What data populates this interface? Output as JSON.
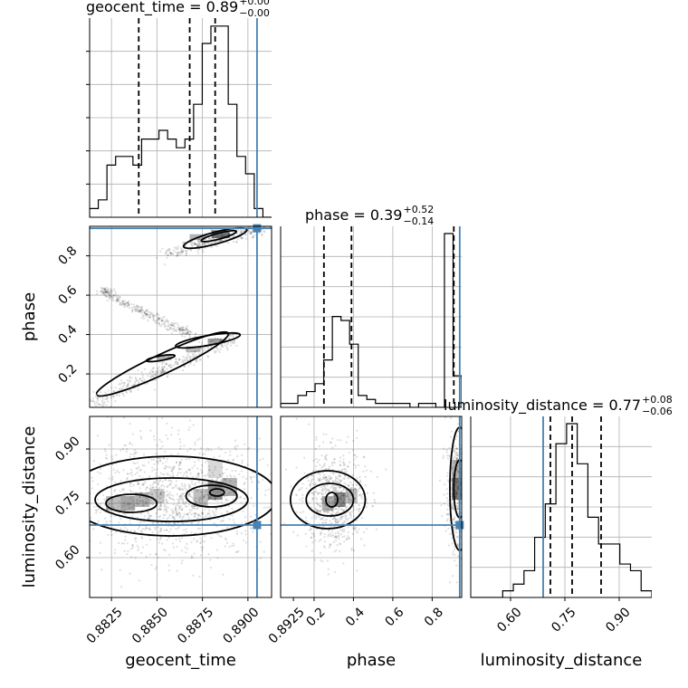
{
  "chart_data": {
    "type": "corner",
    "truth_color": "#4682b4",
    "parameters": [
      {
        "key": "geocent_time",
        "label": "geocent_time",
        "range": [
          0.8813,
          0.8913
        ],
        "ticks": [
          "0.8825",
          "0.8850",
          "0.8875",
          "0.8900",
          "0.8925"
        ],
        "tick_values": [
          0.8825,
          0.885,
          0.8875,
          0.89,
          0.8925
        ],
        "title": {
          "base": "geocent_time = 0.89",
          "sup": "+0.00",
          "sub": "−0.00"
        },
        "quantiles": [
          0.884,
          0.8868,
          0.8882
        ],
        "truth": 0.8905,
        "hist": [
          1,
          2,
          6,
          7,
          7,
          6,
          9,
          9,
          10,
          9,
          8,
          9,
          13,
          20,
          22,
          22,
          13,
          7,
          5,
          1,
          0
        ]
      },
      {
        "key": "phase",
        "label": "phase",
        "range": [
          0.03,
          0.95
        ],
        "ticks": [
          "0.2",
          "0.4",
          "0.6",
          "0.8"
        ],
        "tick_values": [
          0.2,
          0.4,
          0.6,
          0.8
        ],
        "title": {
          "base": "phase = 0.39",
          "sup": "+0.52",
          "sub": "−0.14"
        },
        "quantiles": [
          0.25,
          0.39,
          0.91
        ],
        "truth": 0.94,
        "hist": [
          1,
          1,
          3,
          4,
          6,
          12,
          23,
          22,
          16,
          3,
          2,
          1,
          1,
          1,
          1,
          0,
          1,
          1,
          0,
          44,
          8
        ]
      },
      {
        "key": "luminosity_distance",
        "label": "luminosity_distance",
        "range": [
          0.49,
          0.99
        ],
        "ticks": [
          "0.60",
          "0.75",
          "0.90"
        ],
        "tick_values": [
          0.6,
          0.75,
          0.9
        ],
        "title": {
          "base": "luminosity_distance = 0.77",
          "sup": "+0.08",
          "sub": "−0.06"
        },
        "quantiles": [
          0.71,
          0.77,
          0.85
        ],
        "truth": 0.69,
        "hist": [
          0,
          0,
          0,
          1,
          2,
          4,
          9,
          14,
          23,
          26,
          20,
          12,
          8,
          8,
          5,
          4,
          1
        ]
      }
    ]
  }
}
